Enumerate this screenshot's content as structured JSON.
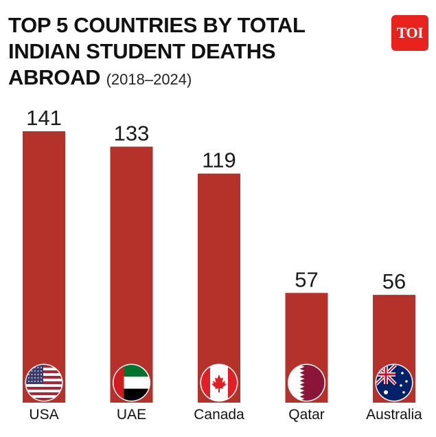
{
  "title_lines": [
    "TOP 5 COUNTRIES BY TOTAL",
    "INDIAN STUDENT DEATHS",
    "ABROAD"
  ],
  "subtitle": "(2018–2024)",
  "logo_text": "TOI",
  "colors": {
    "bar": "#b5322a",
    "logo": "#e8231e",
    "text": "#111111"
  },
  "chart_data": {
    "type": "bar",
    "title": "TOP 5 COUNTRIES BY TOTAL INDIAN STUDENT DEATHS ABROAD (2018–2024)",
    "categories": [
      "USA",
      "UAE",
      "Canada",
      "Qatar",
      "Australia"
    ],
    "values": [
      141,
      133,
      119,
      57,
      56
    ],
    "flags": [
      "usa-flag-icon",
      "uae-flag-icon",
      "canada-flag-icon",
      "qatar-flag-icon",
      "australia-flag-icon"
    ],
    "xlabel": "",
    "ylabel": "",
    "ylim": [
      0,
      141
    ],
    "grid": false,
    "legend": "none"
  }
}
